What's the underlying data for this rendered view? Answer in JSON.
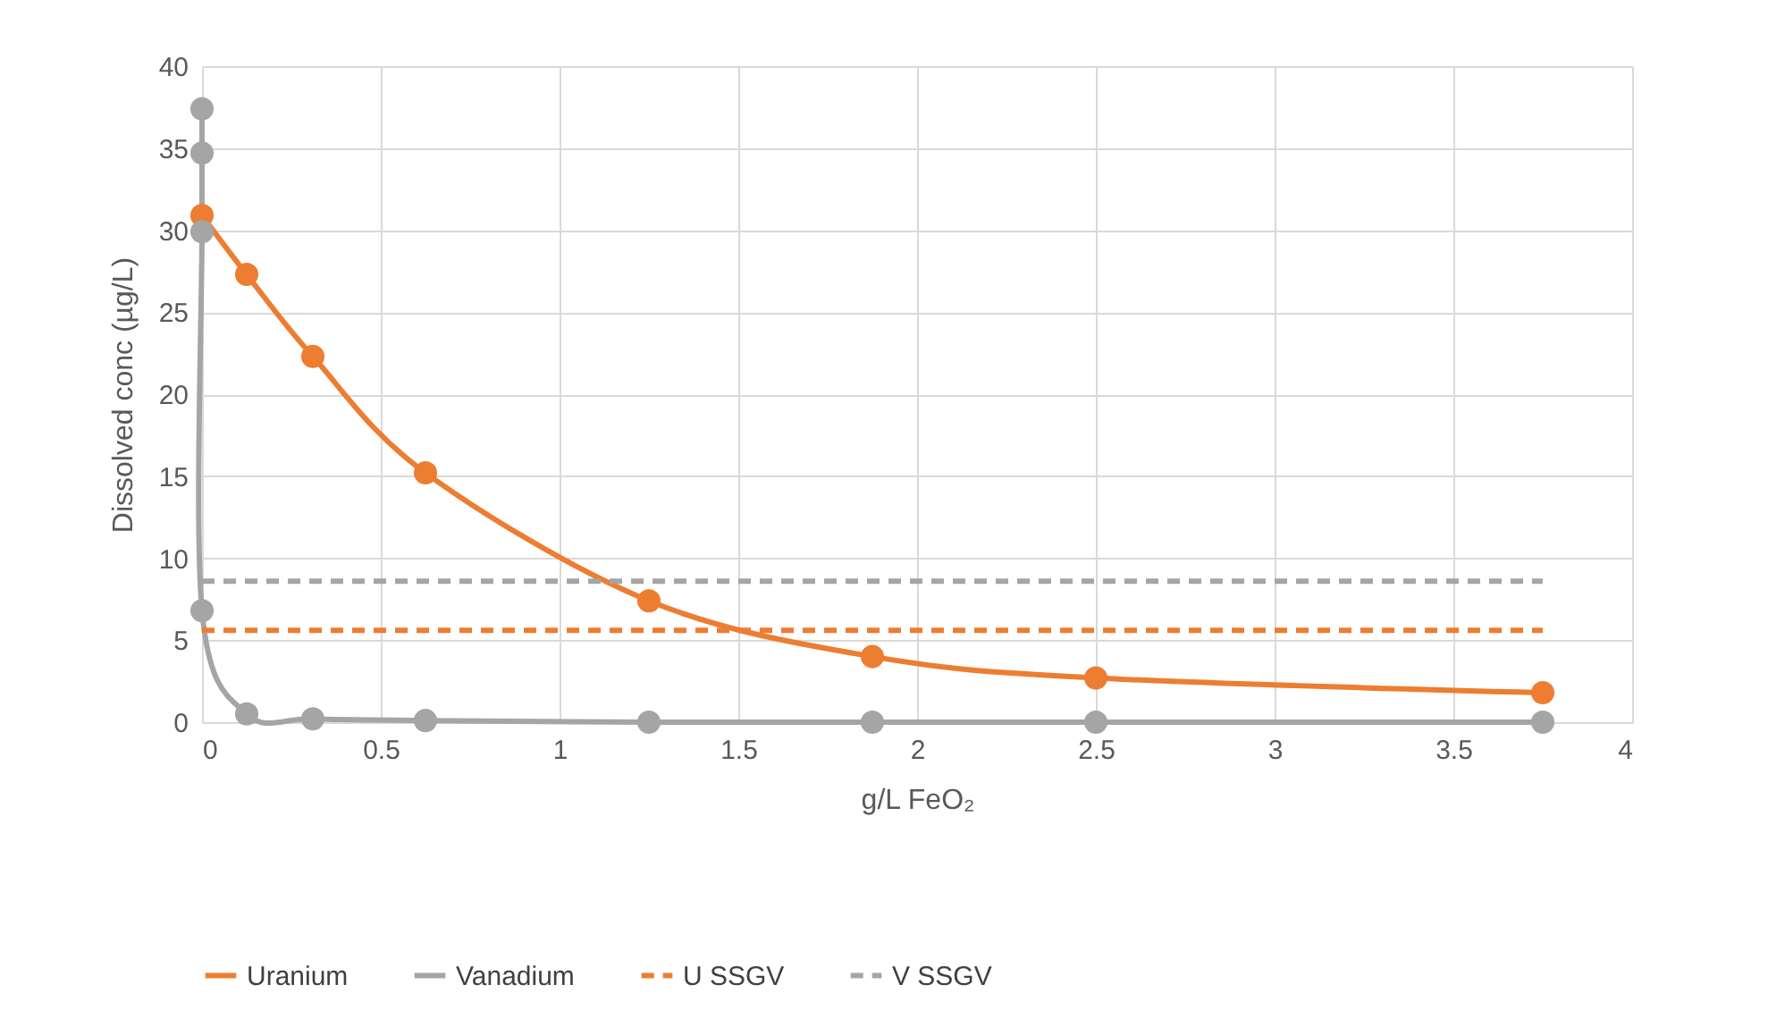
{
  "chart_data": {
    "type": "line",
    "xlabel": "g/L FeO₂",
    "ylabel": "Dissolved conc (µg/L)",
    "xlim": [
      0,
      4
    ],
    "xticks": [
      0,
      0.5,
      1,
      1.5,
      2,
      2.5,
      3,
      3.5,
      4
    ],
    "ylim": [
      0,
      40
    ],
    "yticks": [
      0,
      5,
      10,
      15,
      20,
      25,
      30,
      35,
      40
    ],
    "grid": true,
    "legend": "bottom",
    "marker": "circle",
    "line_style": "solid",
    "series": [
      {
        "name": "Uranium",
        "color": "#ed7d31",
        "x": [
          0,
          0.125,
          0.31,
          0.625,
          1.25,
          1.875,
          2.5,
          3.75
        ],
        "values": [
          30.9,
          27.3,
          22.3,
          15.2,
          7.4,
          4.0,
          2.7,
          1.8
        ]
      },
      {
        "name": "Vanadium",
        "color": "#a5a5a5",
        "x": [
          0,
          0,
          0,
          0,
          0.125,
          0.31,
          0.625,
          1.25,
          1.875,
          2.5,
          3.75
        ],
        "values": [
          37.4,
          34.7,
          29.9,
          6.8,
          0.5,
          0.2,
          0.1,
          0,
          0,
          0,
          0
        ]
      },
      {
        "name": "U SSGV",
        "color": "#ed7d31",
        "x": [
          0,
          3.75
        ],
        "values": [
          5.6,
          5.6
        ],
        "marker": "none",
        "line_style": "dashed"
      },
      {
        "name": "V SSGV",
        "color": "#a5a5a5",
        "x": [
          0,
          3.75
        ],
        "values": [
          8.6,
          8.6
        ],
        "marker": "none",
        "line_style": "dashed"
      }
    ]
  }
}
